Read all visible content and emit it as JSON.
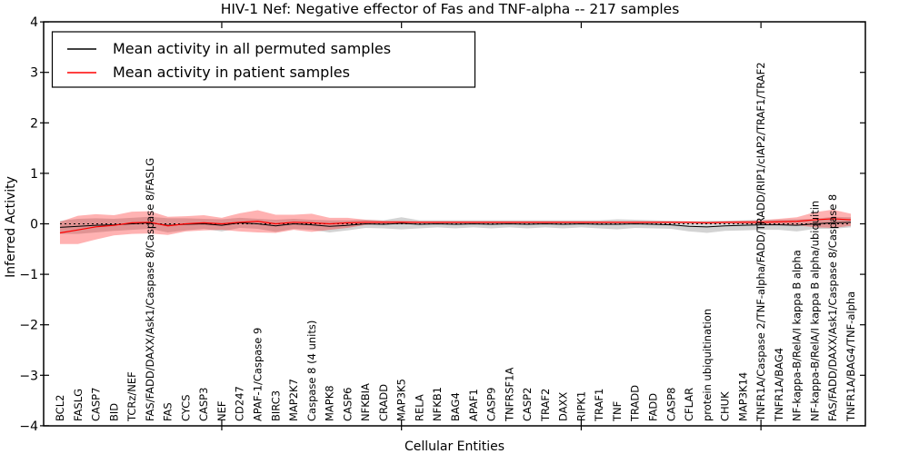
{
  "chart_data": {
    "type": "line",
    "title": "HIV-1 Nef: Negative effector of Fas and TNF-alpha -- 217 samples",
    "xlabel": "Cellular Entities",
    "ylabel": "Inferred Activity",
    "ylim": [
      -4,
      4
    ],
    "grid": false,
    "legend_position": "upper left",
    "yticks": [
      {
        "value": 4,
        "label": "4"
      },
      {
        "value": 3,
        "label": "3"
      },
      {
        "value": 2,
        "label": "2"
      },
      {
        "value": 1,
        "label": "1"
      },
      {
        "value": 0,
        "label": "0"
      },
      {
        "value": -1,
        "label": "−1"
      },
      {
        "value": -2,
        "label": "−2"
      },
      {
        "value": -3,
        "label": "−3"
      },
      {
        "value": -4,
        "label": "−4"
      }
    ],
    "x_tick_values": [
      10,
      20,
      30,
      40
    ],
    "x_start": 1,
    "categories": [
      "BCL2",
      "FASLG",
      "CASP7",
      "BID",
      "TCRz/NEF",
      "FAS/FADD/DAXX/Ask1/Caspase 8/Caspase 8/FASLG",
      "FAS",
      "CYCS",
      "CASP3",
      "NEF",
      "CD247",
      "APAF-1/Caspase 9",
      "BIRC3",
      "MAP2K7",
      "Caspase 8 (4 units)",
      "MAPK8",
      "CASP6",
      "NFKBIA",
      "CRADD",
      "MAP3K5",
      "RELA",
      "NFKB1",
      "BAG4",
      "APAF1",
      "CASP9",
      "TNFRSF1A",
      "CASP2",
      "TRAF2",
      "DAXX",
      "RIPK1",
      "TRAF1",
      "TNF",
      "TRADD",
      "FADD",
      "CASP8",
      "CFLAR",
      "protein ubiquitination",
      "CHUK",
      "MAP3K14",
      "TNFR1A/Caspase 2/TNF-alpha/FADD/TRADD/RIP1/cIAP2/TRAF1/TRAF2",
      "TNFR1A/BAG4",
      "NF-kappa-B/RelA/I kappa B alpha",
      "NF-kappa-B/RelA/I kappa B alpha/ubiquitin",
      "FAS/FADD/DAXX/Ask1/Caspase 8/Caspase 8",
      "TNFR1A/BAG4/TNF-alpha"
    ],
    "series": [
      {
        "name": "Mean activity in all permuted samples",
        "color": "#000000",
        "line_width": 1,
        "band_fill": "rgba(128,128,128,0.35)",
        "values": [
          -0.07,
          -0.05,
          -0.03,
          -0.02,
          0.0,
          0.02,
          -0.03,
          -0.01,
          0.0,
          -0.03,
          0.02,
          0.0,
          -0.04,
          0.0,
          -0.02,
          -0.05,
          -0.03,
          0.0,
          -0.01,
          0.01,
          -0.01,
          0.0,
          -0.01,
          0.0,
          -0.01,
          0.0,
          -0.01,
          0.0,
          -0.01,
          0.0,
          -0.01,
          -0.01,
          0.0,
          -0.01,
          -0.02,
          -0.05,
          -0.06,
          -0.04,
          -0.03,
          -0.02,
          -0.02,
          -0.03,
          0.0,
          0.02,
          0.03
        ],
        "band_std": [
          0.13,
          0.15,
          0.14,
          0.12,
          0.12,
          0.12,
          0.14,
          0.12,
          0.1,
          0.12,
          0.1,
          0.1,
          0.12,
          0.1,
          0.1,
          0.12,
          0.1,
          0.08,
          0.08,
          0.12,
          0.08,
          0.07,
          0.08,
          0.07,
          0.08,
          0.07,
          0.08,
          0.07,
          0.08,
          0.07,
          0.08,
          0.1,
          0.08,
          0.08,
          0.08,
          0.1,
          0.12,
          0.1,
          0.1,
          0.1,
          0.1,
          0.12,
          0.1,
          0.12,
          0.1
        ]
      },
      {
        "name": "Mean activity in patient samples",
        "color": "#ff0000",
        "line_width": 1.2,
        "band_fill": "rgba(255,0,0,0.30)",
        "values": [
          -0.18,
          -0.12,
          -0.06,
          -0.03,
          0.02,
          0.03,
          -0.04,
          0.0,
          0.02,
          0.0,
          0.03,
          0.05,
          0.0,
          0.03,
          0.02,
          0.0,
          0.02,
          0.03,
          0.03,
          0.03,
          0.03,
          0.03,
          0.03,
          0.03,
          0.03,
          0.03,
          0.03,
          0.03,
          0.03,
          0.03,
          0.03,
          0.03,
          0.03,
          0.03,
          0.03,
          0.03,
          0.02,
          0.03,
          0.03,
          0.03,
          0.04,
          0.05,
          0.08,
          0.1,
          0.08
        ],
        "band_std": [
          0.22,
          0.28,
          0.25,
          0.2,
          0.22,
          0.22,
          0.18,
          0.15,
          0.15,
          0.12,
          0.18,
          0.22,
          0.18,
          0.15,
          0.18,
          0.12,
          0.1,
          0.05,
          0.03,
          0.03,
          0.02,
          0.02,
          0.02,
          0.02,
          0.02,
          0.02,
          0.02,
          0.02,
          0.02,
          0.02,
          0.02,
          0.02,
          0.02,
          0.02,
          0.02,
          0.02,
          0.02,
          0.02,
          0.03,
          0.04,
          0.06,
          0.08,
          0.15,
          0.18,
          0.12
        ]
      }
    ],
    "reference_line": {
      "y": 0,
      "style": "dashed",
      "color": "#000000"
    }
  },
  "colors": {
    "background": "#ffffff",
    "axis": "#000000",
    "permuted_line": "#000000",
    "patient_line": "#ff0000"
  }
}
